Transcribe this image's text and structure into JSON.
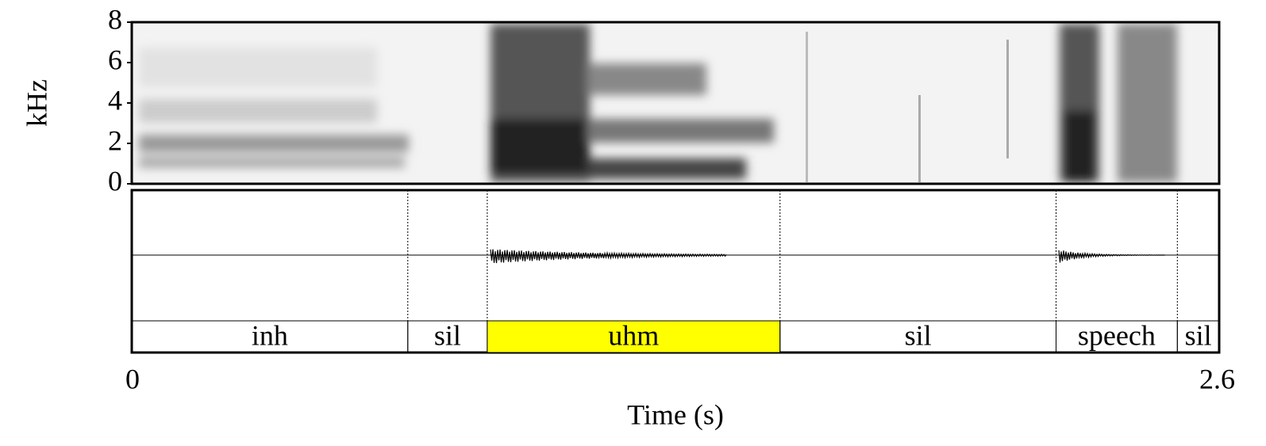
{
  "chart_data": {
    "type": "spectrogram",
    "ylabel": "kHz",
    "xlabel": "Time (s)",
    "xlim": [
      0,
      2.6
    ],
    "xticks": [
      0,
      2.6
    ],
    "ylim": [
      0,
      8
    ],
    "yticks": [
      0,
      2,
      4,
      6,
      8
    ],
    "highlight_color": "#ffff00",
    "intervals": [
      {
        "label": "inh",
        "start": 0,
        "end": 0.66
      },
      {
        "label": "sil",
        "start": 0.66,
        "end": 0.85
      },
      {
        "label": "uhm",
        "start": 0.85,
        "end": 1.55,
        "highlighted": true
      },
      {
        "label": "sil",
        "start": 1.55,
        "end": 2.21
      },
      {
        "label": "speech",
        "start": 2.21,
        "end": 2.5
      },
      {
        "label": "sil",
        "start": 2.5,
        "end": 2.6
      }
    ]
  }
}
